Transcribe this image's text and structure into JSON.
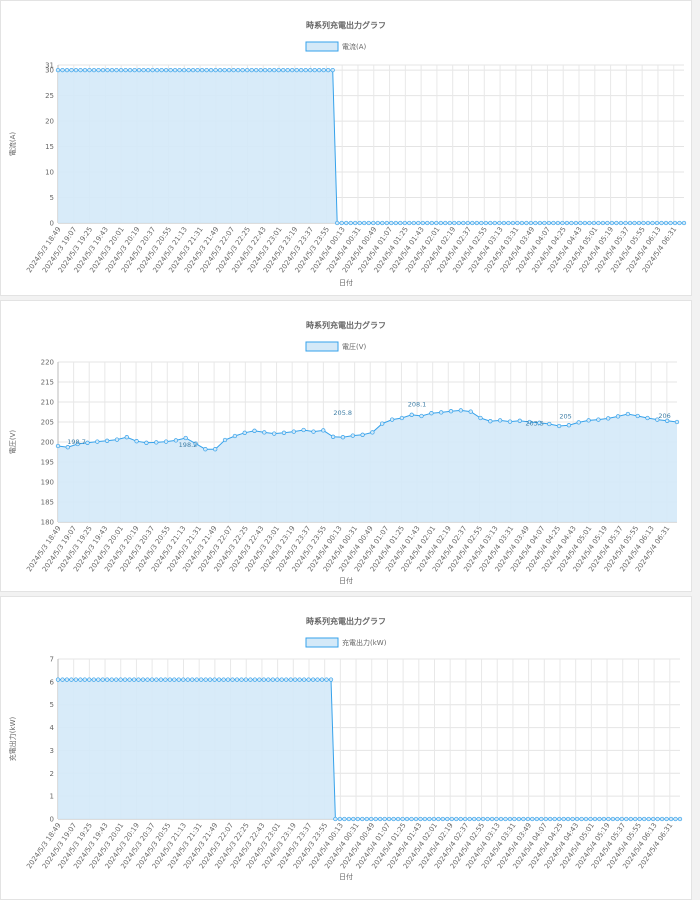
{
  "chart_data": [
    {
      "type": "area",
      "title": "時系列充電出力グラフ",
      "xlabel": "日付",
      "ylabel": "電流(A)",
      "ylim": [
        0,
        31
      ],
      "yticks": [
        0,
        5,
        10,
        15,
        20,
        25,
        30,
        31
      ],
      "grid": true,
      "legend_position": "top-center",
      "x_ticks": [
        "2024/5/3 18:49",
        "2024/5/3 19:07",
        "2024/5/3 19:25",
        "2024/5/3 19:43",
        "2024/5/3 20:01",
        "2024/5/3 20:19",
        "2024/5/3 20:37",
        "2024/5/3 20:55",
        "2024/5/3 21:13",
        "2024/5/3 21:31",
        "2024/5/3 21:49",
        "2024/5/3 22:07",
        "2024/5/3 22:25",
        "2024/5/3 22:43",
        "2024/5/3 23:01",
        "2024/5/3 23:19",
        "2024/5/3 23:37",
        "2024/5/3 23:55",
        "2024/5/4 00:13",
        "2024/5/4 00:31",
        "2024/5/4 00:49",
        "2024/5/4 01:07",
        "2024/5/4 01:25",
        "2024/5/4 01:43",
        "2024/5/4 02:01",
        "2024/5/4 02:19",
        "2024/5/4 02:37",
        "2024/5/4 02:55",
        "2024/5/4 03:13",
        "2024/5/4 03:31",
        "2024/5/4 03:49",
        "2024/5/4 04:07",
        "2024/5/4 04:25",
        "2024/5/4 04:43",
        "2024/5/4 05:01",
        "2024/5/4 05:19",
        "2024/5/4 05:37",
        "2024/5/4 05:55",
        "2024/5/4 06:13",
        "2024/5/4 06:31"
      ],
      "series": [
        {
          "name": "電流(A)",
          "color": "#36a2eb",
          "fill": "#d4e9f8",
          "segments": [
            {
              "from": 0,
              "to": 0.44,
              "value": 30
            },
            {
              "from": 0.45,
              "to": 1,
              "value": 0
            }
          ]
        }
      ]
    },
    {
      "type": "area",
      "title": "時系列充電出力グラフ",
      "xlabel": "日付",
      "ylabel": "電圧(V)",
      "ylim": [
        180,
        220
      ],
      "yticks": [
        180,
        185,
        190,
        195,
        200,
        205,
        210,
        215,
        220
      ],
      "grid": true,
      "legend_position": "top-center",
      "x_ticks": [
        "2024/5/3 18:49",
        "2024/5/3 19:07",
        "2024/5/3 19:25",
        "2024/5/3 19:43",
        "2024/5/3 20:01",
        "2024/5/3 20:19",
        "2024/5/3 20:37",
        "2024/5/3 20:55",
        "2024/5/3 21:13",
        "2024/5/3 21:31",
        "2024/5/3 21:49",
        "2024/5/3 22:07",
        "2024/5/3 22:25",
        "2024/5/3 22:43",
        "2024/5/3 23:01",
        "2024/5/3 23:19",
        "2024/5/3 23:37",
        "2024/5/3 23:55",
        "2024/5/4 00:13",
        "2024/5/4 00:31",
        "2024/5/4 00:49",
        "2024/5/4 01:07",
        "2024/5/4 01:25",
        "2024/5/4 01:43",
        "2024/5/4 02:01",
        "2024/5/4 02:19",
        "2024/5/4 02:37",
        "2024/5/4 02:55",
        "2024/5/4 03:13",
        "2024/5/4 03:31",
        "2024/5/4 03:49",
        "2024/5/4 04:07",
        "2024/5/4 04:25",
        "2024/5/4 04:43",
        "2024/5/4 05:01",
        "2024/5/4 05:19",
        "2024/5/4 05:37",
        "2024/5/4 05:55",
        "2024/5/4 06:13",
        "2024/5/4 06:31"
      ],
      "series": [
        {
          "name": "電圧(V)",
          "color": "#36a2eb",
          "fill": "#d4e9f8",
          "values": [
            199,
            198.7,
            199.5,
            199.8,
            200.1,
            200.3,
            200.6,
            201.2,
            200.2,
            199.8,
            199.9,
            200.1,
            200.4,
            201.0,
            199.6,
            198.2,
            198.2,
            200.5,
            201.5,
            202.3,
            202.8,
            202.4,
            202.1,
            202.3,
            202.6,
            203.0,
            202.6,
            202.9,
            201.3,
            201.2,
            201.6,
            201.8,
            202.4,
            204.6,
            205.6,
            206.0,
            206.8,
            206.5,
            207.2,
            207.4,
            207.7,
            207.9,
            207.6,
            206.0,
            205.2,
            205.4,
            205.1,
            205.3,
            205.0,
            204.8,
            204.5,
            204.0,
            204.2,
            204.9,
            205.4,
            205.6,
            205.9,
            206.4,
            207.0,
            206.5,
            206.0,
            205.6,
            205.3,
            205.0
          ]
        }
      ],
      "data_labels_visible": [
        "198.7",
        "198.2",
        "205.8",
        "208.1",
        "203.5",
        "205",
        "206"
      ]
    },
    {
      "type": "area",
      "title": "時系列充電出力グラフ",
      "xlabel": "日付",
      "ylabel": "充電出力(kW)",
      "ylim": [
        0,
        7
      ],
      "yticks": [
        0,
        1,
        2,
        3,
        4,
        5,
        6,
        7
      ],
      "grid": true,
      "legend_position": "top-center",
      "x_ticks": [
        "2024/5/3 18:49",
        "2024/5/3 19:07",
        "2024/5/3 19:25",
        "2024/5/3 19:43",
        "2024/5/3 20:01",
        "2024/5/3 20:19",
        "2024/5/3 20:37",
        "2024/5/3 20:55",
        "2024/5/3 21:13",
        "2024/5/3 21:31",
        "2024/5/3 21:49",
        "2024/5/3 22:07",
        "2024/5/3 22:25",
        "2024/5/3 22:43",
        "2024/5/3 23:01",
        "2024/5/3 23:19",
        "2024/5/3 23:37",
        "2024/5/3 23:55",
        "2024/5/4 00:13",
        "2024/5/4 00:31",
        "2024/5/4 00:49",
        "2024/5/4 01:07",
        "2024/5/4 01:25",
        "2024/5/4 01:43",
        "2024/5/4 02:01",
        "2024/5/4 02:19",
        "2024/5/4 02:37",
        "2024/5/4 02:55",
        "2024/5/4 03:13",
        "2024/5/4 03:31",
        "2024/5/4 03:49",
        "2024/5/4 04:07",
        "2024/5/4 04:25",
        "2024/5/4 04:43",
        "2024/5/4 05:01",
        "2024/5/4 05:19",
        "2024/5/4 05:37",
        "2024/5/4 05:55",
        "2024/5/4 06:13",
        "2024/5/4 06:31"
      ],
      "series": [
        {
          "name": "充電出力(kW)",
          "color": "#36a2eb",
          "fill": "#d4e9f8",
          "segments": [
            {
              "from": 0,
              "to": 0.44,
              "value": 6.1
            },
            {
              "from": 0.45,
              "to": 1,
              "value": 0
            }
          ]
        }
      ]
    }
  ]
}
